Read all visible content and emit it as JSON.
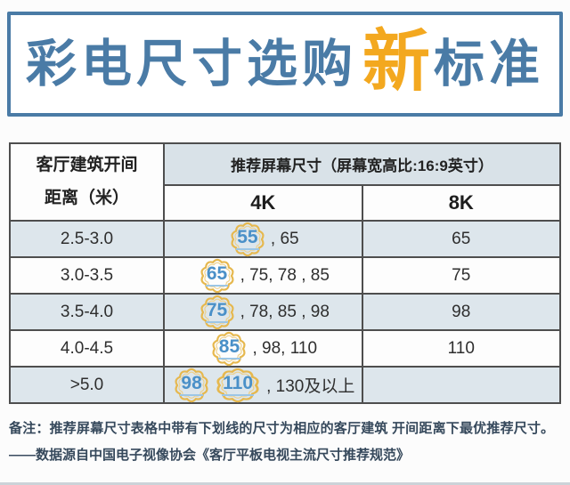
{
  "title": {
    "prefix": "彩电尺寸选购",
    "highlight": "新",
    "suffix": "标准"
  },
  "table": {
    "row_header_line1": "客厅建筑开间",
    "row_header_line2": "距离（米）",
    "col_group_header": "推荐屏幕尺寸（屏幕宽高比:16:9英寸）",
    "col_4k": "4K",
    "col_8k": "8K",
    "rows": [
      {
        "distance": "2.5-3.0",
        "optimal": [
          "55"
        ],
        "others": ", 65",
        "eightk": "65"
      },
      {
        "distance": "3.0-3.5",
        "optimal": [
          "65"
        ],
        "others": ", 75, 78 , 85",
        "eightk": "75"
      },
      {
        "distance": "3.5-4.0",
        "optimal": [
          "75"
        ],
        "others": ", 78, 85 , 98",
        "eightk": "98"
      },
      {
        "distance": "4.0-4.5",
        "optimal": [
          "85"
        ],
        "others": ", 98, 110",
        "eightk": "110"
      },
      {
        "distance": ">5.0",
        "optimal": [
          "98",
          "110"
        ],
        "others": ", 130及以上",
        "eightk": ""
      }
    ]
  },
  "footer": {
    "note": "备注：推荐屏幕尺寸表格中带有下划线的尺寸为相应的客厅建筑 开间距离下最优推荐尺寸。",
    "source": "——数据源自中国电子视像协会《客厅平板电视主流尺寸推荐规范》"
  },
  "colors": {
    "title_blue": "#4a7ba6",
    "highlight_orange": "#f3a81f",
    "table_border": "#4e4e4e",
    "header_group_bg": "#d9e2e8",
    "row_alt_bg": "#dde6ec",
    "badge_gold_outline": "#e6b84e",
    "badge_number_blue": "#4a90c8",
    "badge_underline_blue": "#9cc6e6",
    "footer_navy": "#36495c"
  },
  "chart_data": {
    "type": "table",
    "title": "彩电尺寸选购新标准",
    "columns": [
      "客厅建筑开间距离（米）",
      "推荐屏幕尺寸 4K（16:9英寸）",
      "推荐屏幕尺寸 8K（16:9英寸）"
    ],
    "rows": [
      [
        "2.5-3.0",
        "55（最优）, 65",
        "65"
      ],
      [
        "3.0-3.5",
        "65（最优）, 75, 78, 85",
        "75"
      ],
      [
        "3.5-4.0",
        "75（最优）, 78, 85, 98",
        "98"
      ],
      [
        "4.0-4.5",
        "85（最优）, 98, 110",
        "110"
      ],
      [
        ">5.0",
        "98（最优）, 110（最优）, 130及以上",
        ""
      ]
    ],
    "notes": "带下划线（花形徽章）的尺寸为相应开间距离下最优推荐尺寸"
  }
}
